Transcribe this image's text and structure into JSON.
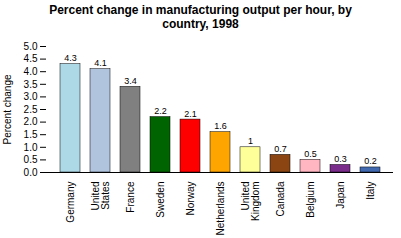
{
  "chart_data": {
    "type": "bar",
    "title": "Percent change in manufacturing output per hour, by\ncountry, 1998",
    "ylabel": "Percent change",
    "categories": [
      "Germany",
      "United\nStates",
      "France",
      "Sweden",
      "Norway",
      "Netherlands",
      "United\nKingdom",
      "Canada",
      "Belgium",
      "Japan",
      "Italy"
    ],
    "values": [
      4.3,
      4.1,
      3.4,
      2.2,
      2.1,
      1.6,
      1.0,
      0.7,
      0.5,
      0.3,
      0.2
    ],
    "colors": [
      "#add8e6",
      "#b0c4de",
      "#808080",
      "#006400",
      "#ff0000",
      "#ffa500",
      "#ffff99",
      "#8b4513",
      "#ffb6c1",
      "#7b2d8b",
      "#4169b0"
    ],
    "ylim": [
      0,
      5.0
    ],
    "yticks": [
      {
        "value": 0,
        "label": "0.0"
      },
      0.5,
      {
        "value": 1,
        "label": "1.0"
      },
      1.5,
      {
        "value": 2,
        "label": "2.0"
      },
      2.5,
      {
        "value": 3,
        "label": "3.0"
      },
      3.5,
      {
        "value": 4,
        "label": "4.0"
      },
      4.5,
      {
        "value": 5,
        "label": "5.0"
      }
    ],
    "data_labels": true,
    "grid": false
  }
}
